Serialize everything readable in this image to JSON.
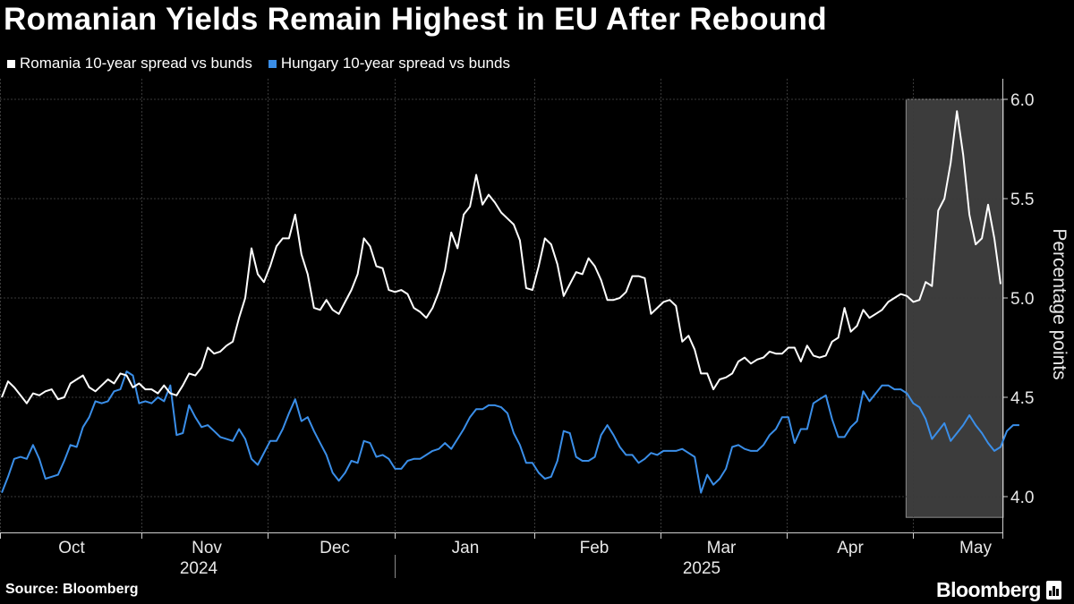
{
  "title": "Romanian Yields Remain Highest in EU After Rebound",
  "legend": [
    {
      "label": "Romania 10-year spread vs bunds",
      "color": "#ffffff"
    },
    {
      "label": "Hungary 10-year spread vs bunds",
      "color": "#3a8ee8"
    }
  ],
  "source": "Source: Bloomberg",
  "brand": "Bloomberg",
  "chart_data": {
    "type": "line",
    "ylabel": "Percentage points",
    "ylim": [
      3.9,
      6.1
    ],
    "yticks": [
      "6.0",
      "5.5",
      "5.0",
      "4.5",
      "4.0"
    ],
    "grid": true,
    "legend_position": "top-left",
    "x_axis": {
      "months": [
        "Oct",
        "Nov",
        "Dec",
        "Jan",
        "Feb",
        "Mar",
        "Apr",
        "May"
      ],
      "years": [
        "2024",
        "2025"
      ]
    },
    "highlight": {
      "from_index": 145,
      "to_index": 165,
      "color": "#3c3c3c"
    },
    "series": [
      {
        "name": "Romania 10-year spread vs bunds",
        "color": "#ffffff",
        "values": [
          4.5,
          4.58,
          4.55,
          4.51,
          4.47,
          4.52,
          4.51,
          4.53,
          4.54,
          4.49,
          4.5,
          4.57,
          4.59,
          4.61,
          4.55,
          4.53,
          4.56,
          4.59,
          4.57,
          4.62,
          4.61,
          4.55,
          4.57,
          4.54,
          4.54,
          4.52,
          4.56,
          4.52,
          4.51,
          4.56,
          4.62,
          4.61,
          4.65,
          4.75,
          4.72,
          4.73,
          4.76,
          4.78,
          4.9,
          5.0,
          5.25,
          5.12,
          5.08,
          5.16,
          5.26,
          5.3,
          5.3,
          5.42,
          5.22,
          5.12,
          4.95,
          4.94,
          4.99,
          4.94,
          4.92,
          4.98,
          5.04,
          5.12,
          5.3,
          5.26,
          5.16,
          5.15,
          5.04,
          5.03,
          5.04,
          5.02,
          4.95,
          4.93,
          4.9,
          4.95,
          5.03,
          5.14,
          5.33,
          5.25,
          5.42,
          5.46,
          5.62,
          5.47,
          5.52,
          5.48,
          5.43,
          5.4,
          5.37,
          5.29,
          5.05,
          5.04,
          5.16,
          5.3,
          5.27,
          5.17,
          5.01,
          5.07,
          5.13,
          5.12,
          5.2,
          5.16,
          5.09,
          4.99,
          4.99,
          5.0,
          5.03,
          5.11,
          5.11,
          5.1,
          4.92,
          4.95,
          4.98,
          4.99,
          4.96,
          4.78,
          4.81,
          4.74,
          4.62,
          4.62,
          4.54,
          4.59,
          4.6,
          4.62,
          4.68,
          4.7,
          4.67,
          4.69,
          4.7,
          4.73,
          4.72,
          4.72,
          4.75,
          4.75,
          4.68,
          4.76,
          4.71,
          4.7,
          4.71,
          4.78,
          4.8,
          4.95,
          4.83,
          4.86,
          4.94,
          4.9,
          4.92,
          4.94,
          4.98,
          5.0,
          5.02,
          5.01,
          4.98,
          4.99,
          5.08,
          5.06,
          5.44,
          5.5,
          5.68,
          5.94,
          5.72,
          5.42,
          5.27,
          5.3,
          5.47,
          5.3,
          5.07
        ]
      },
      {
        "name": "Hungary 10-year spread vs bunds",
        "color": "#3a8ee8",
        "values": [
          4.02,
          4.1,
          4.19,
          4.2,
          4.19,
          4.26,
          4.19,
          4.09,
          4.1,
          4.11,
          4.18,
          4.26,
          4.25,
          4.35,
          4.4,
          4.48,
          4.47,
          4.48,
          4.53,
          4.54,
          4.63,
          4.61,
          4.47,
          4.48,
          4.47,
          4.5,
          4.48,
          4.56,
          4.31,
          4.32,
          4.46,
          4.4,
          4.35,
          4.36,
          4.33,
          4.3,
          4.29,
          4.28,
          4.34,
          4.29,
          4.19,
          4.16,
          4.22,
          4.28,
          4.28,
          4.34,
          4.42,
          4.49,
          4.38,
          4.4,
          4.33,
          4.27,
          4.21,
          4.12,
          4.08,
          4.12,
          4.18,
          4.17,
          4.28,
          4.27,
          4.2,
          4.21,
          4.19,
          4.14,
          4.14,
          4.18,
          4.19,
          4.19,
          4.21,
          4.23,
          4.24,
          4.27,
          4.24,
          4.29,
          4.34,
          4.4,
          4.44,
          4.44,
          4.46,
          4.46,
          4.45,
          4.42,
          4.32,
          4.26,
          4.17,
          4.17,
          4.12,
          4.09,
          4.1,
          4.18,
          4.33,
          4.32,
          4.2,
          4.18,
          4.18,
          4.2,
          4.31,
          4.36,
          4.31,
          4.25,
          4.21,
          4.21,
          4.17,
          4.19,
          4.22,
          4.21,
          4.23,
          4.23,
          4.23,
          4.24,
          4.22,
          4.2,
          4.02,
          4.11,
          4.06,
          4.09,
          4.14,
          4.25,
          4.26,
          4.24,
          4.23,
          4.23,
          4.26,
          4.31,
          4.34,
          4.4,
          4.4,
          4.27,
          4.34,
          4.34,
          4.47,
          4.49,
          4.51,
          4.39,
          4.3,
          4.3,
          4.35,
          4.38,
          4.53,
          4.48,
          4.52,
          4.56,
          4.56,
          4.54,
          4.54,
          4.52,
          4.47,
          4.45,
          4.39,
          4.29,
          4.33,
          4.37,
          4.28,
          4.32,
          4.36,
          4.41,
          4.36,
          4.32,
          4.27,
          4.23,
          4.25,
          4.33,
          4.36,
          4.36
        ]
      }
    ]
  }
}
